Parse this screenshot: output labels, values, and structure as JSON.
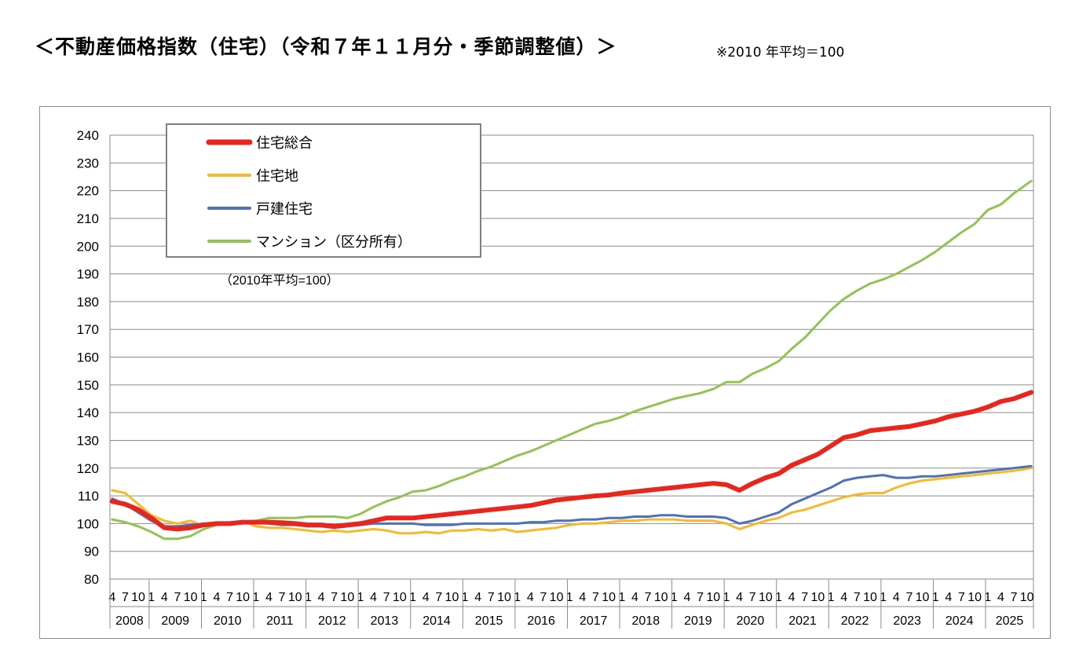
{
  "page": {
    "title": "＜不動産価格指数（住宅）（令和７年１１月分・季節調整値）＞",
    "note": "※2010 年平均＝100"
  },
  "chart_data": {
    "type": "line",
    "title": "",
    "ylim": [
      80,
      240
    ],
    "ytick_step": 10,
    "grid": "horizontal",
    "legend_position": "top-left",
    "base_note": "（2010年平均=100）",
    "month_tick_labels": [
      "1",
      "4",
      "7",
      "10"
    ],
    "years": [
      "2008",
      "2009",
      "2010",
      "2011",
      "2012",
      "2013",
      "2014",
      "2015",
      "2016",
      "2017",
      "2018",
      "2019",
      "2020",
      "2021",
      "2022",
      "2023",
      "2024",
      "2025"
    ],
    "x_start": "2008-04",
    "x_end": "2025-11",
    "series": [
      {
        "name": "住宅総合",
        "color": "#e8261e",
        "points": [
          [
            "2008-04",
            108
          ],
          [
            "2008-07",
            107
          ],
          [
            "2008-10",
            105
          ],
          [
            "2009-01",
            102
          ],
          [
            "2009-04",
            98.5
          ],
          [
            "2009-07",
            98
          ],
          [
            "2009-10",
            98.5
          ],
          [
            "2010-01",
            99.5
          ],
          [
            "2010-04",
            100
          ],
          [
            "2010-07",
            100
          ],
          [
            "2010-10",
            100.5
          ],
          [
            "2011-01",
            100.5
          ],
          [
            "2011-04",
            100.5
          ],
          [
            "2011-07",
            100.3
          ],
          [
            "2011-10",
            100
          ],
          [
            "2012-01",
            99.5
          ],
          [
            "2012-04",
            99.5
          ],
          [
            "2012-07",
            99
          ],
          [
            "2012-10",
            99.5
          ],
          [
            "2013-01",
            100
          ],
          [
            "2013-04",
            101
          ],
          [
            "2013-07",
            102
          ],
          [
            "2013-10",
            102
          ],
          [
            "2014-01",
            102
          ],
          [
            "2014-04",
            102.5
          ],
          [
            "2014-07",
            103
          ],
          [
            "2014-10",
            103.5
          ],
          [
            "2015-01",
            104
          ],
          [
            "2015-04",
            104.5
          ],
          [
            "2015-07",
            105
          ],
          [
            "2015-10",
            105.5
          ],
          [
            "2016-01",
            106
          ],
          [
            "2016-04",
            106.5
          ],
          [
            "2016-07",
            107.5
          ],
          [
            "2016-10",
            108.5
          ],
          [
            "2017-01",
            109
          ],
          [
            "2017-04",
            109.5
          ],
          [
            "2017-07",
            110
          ],
          [
            "2017-10",
            110.3
          ],
          [
            "2018-01",
            111
          ],
          [
            "2018-04",
            111.5
          ],
          [
            "2018-07",
            112
          ],
          [
            "2018-10",
            112.5
          ],
          [
            "2019-01",
            113
          ],
          [
            "2019-04",
            113.5
          ],
          [
            "2019-07",
            114
          ],
          [
            "2019-10",
            114.5
          ],
          [
            "2020-01",
            114
          ],
          [
            "2020-04",
            112
          ],
          [
            "2020-07",
            114.5
          ],
          [
            "2020-10",
            116.5
          ],
          [
            "2021-01",
            118
          ],
          [
            "2021-04",
            121
          ],
          [
            "2021-07",
            123
          ],
          [
            "2021-10",
            125
          ],
          [
            "2022-01",
            128
          ],
          [
            "2022-04",
            131
          ],
          [
            "2022-07",
            132
          ],
          [
            "2022-10",
            133.5
          ],
          [
            "2023-01",
            134
          ],
          [
            "2023-04",
            134.5
          ],
          [
            "2023-07",
            135
          ],
          [
            "2023-10",
            136
          ],
          [
            "2024-01",
            137
          ],
          [
            "2024-04",
            138.5
          ],
          [
            "2024-07",
            139.5
          ],
          [
            "2024-10",
            140.5
          ],
          [
            "2025-01",
            142
          ],
          [
            "2025-04",
            144
          ],
          [
            "2025-07",
            145
          ],
          [
            "2025-11",
            147.3
          ]
        ]
      },
      {
        "name": "住宅地",
        "color": "#f7b92b",
        "points": [
          [
            "2008-04",
            112
          ],
          [
            "2008-07",
            111
          ],
          [
            "2008-10",
            107
          ],
          [
            "2009-01",
            103
          ],
          [
            "2009-04",
            101
          ],
          [
            "2009-07",
            100
          ],
          [
            "2009-10",
            101
          ],
          [
            "2010-01",
            99
          ],
          [
            "2010-04",
            100
          ],
          [
            "2010-07",
            100
          ],
          [
            "2010-10",
            101
          ],
          [
            "2011-01",
            99
          ],
          [
            "2011-04",
            98.5
          ],
          [
            "2011-07",
            98.5
          ],
          [
            "2011-10",
            98
          ],
          [
            "2012-01",
            97.5
          ],
          [
            "2012-04",
            97
          ],
          [
            "2012-07",
            97.5
          ],
          [
            "2012-10",
            97
          ],
          [
            "2013-01",
            97.5
          ],
          [
            "2013-04",
            98
          ],
          [
            "2013-07",
            97.5
          ],
          [
            "2013-10",
            96.5
          ],
          [
            "2014-01",
            96.5
          ],
          [
            "2014-04",
            97
          ],
          [
            "2014-07",
            96.5
          ],
          [
            "2014-10",
            97.5
          ],
          [
            "2015-01",
            97.5
          ],
          [
            "2015-04",
            98
          ],
          [
            "2015-07",
            97.5
          ],
          [
            "2015-10",
            98
          ],
          [
            "2016-01",
            97
          ],
          [
            "2016-04",
            97.5
          ],
          [
            "2016-07",
            98
          ],
          [
            "2016-10",
            98.5
          ],
          [
            "2017-01",
            99.5
          ],
          [
            "2017-04",
            100
          ],
          [
            "2017-07",
            100
          ],
          [
            "2017-10",
            100.5
          ],
          [
            "2018-01",
            101
          ],
          [
            "2018-04",
            101
          ],
          [
            "2018-07",
            101.5
          ],
          [
            "2018-10",
            101.5
          ],
          [
            "2019-01",
            101.5
          ],
          [
            "2019-04",
            101
          ],
          [
            "2019-07",
            101
          ],
          [
            "2019-10",
            101
          ],
          [
            "2020-01",
            100
          ],
          [
            "2020-04",
            98
          ],
          [
            "2020-07",
            99.5
          ],
          [
            "2020-10",
            101
          ],
          [
            "2021-01",
            102
          ],
          [
            "2021-04",
            104
          ],
          [
            "2021-07",
            105
          ],
          [
            "2021-10",
            106.5
          ],
          [
            "2022-01",
            108
          ],
          [
            "2022-04",
            109.5
          ],
          [
            "2022-07",
            110.5
          ],
          [
            "2022-10",
            111
          ],
          [
            "2023-01",
            111
          ],
          [
            "2023-04",
            113
          ],
          [
            "2023-07",
            114.5
          ],
          [
            "2023-10",
            115.5
          ],
          [
            "2024-01",
            116
          ],
          [
            "2024-04",
            116.5
          ],
          [
            "2024-07",
            117
          ],
          [
            "2024-10",
            117.5
          ],
          [
            "2025-01",
            118
          ],
          [
            "2025-04",
            118.5
          ],
          [
            "2025-07",
            119
          ],
          [
            "2025-11",
            120
          ]
        ]
      },
      {
        "name": "戸建住宅",
        "color": "#4f71b6",
        "points": [
          [
            "2008-04",
            109
          ],
          [
            "2008-07",
            107
          ],
          [
            "2008-10",
            104
          ],
          [
            "2009-01",
            101
          ],
          [
            "2009-04",
            99
          ],
          [
            "2009-07",
            99
          ],
          [
            "2009-10",
            99.5
          ],
          [
            "2010-01",
            100
          ],
          [
            "2010-04",
            100
          ],
          [
            "2010-07",
            100
          ],
          [
            "2010-10",
            100.5
          ],
          [
            "2011-01",
            100.5
          ],
          [
            "2011-04",
            100
          ],
          [
            "2011-07",
            99.5
          ],
          [
            "2011-10",
            99.5
          ],
          [
            "2012-01",
            99
          ],
          [
            "2012-04",
            99
          ],
          [
            "2012-07",
            98.5
          ],
          [
            "2012-10",
            99
          ],
          [
            "2013-01",
            99.5
          ],
          [
            "2013-04",
            100
          ],
          [
            "2013-07",
            100
          ],
          [
            "2013-10",
            100
          ],
          [
            "2014-01",
            100
          ],
          [
            "2014-04",
            99.5
          ],
          [
            "2014-07",
            99.5
          ],
          [
            "2014-10",
            99.5
          ],
          [
            "2015-01",
            100
          ],
          [
            "2015-04",
            100
          ],
          [
            "2015-07",
            100
          ],
          [
            "2015-10",
            100
          ],
          [
            "2016-01",
            100
          ],
          [
            "2016-04",
            100.5
          ],
          [
            "2016-07",
            100.5
          ],
          [
            "2016-10",
            101
          ],
          [
            "2017-01",
            101
          ],
          [
            "2017-04",
            101.5
          ],
          [
            "2017-07",
            101.5
          ],
          [
            "2017-10",
            102
          ],
          [
            "2018-01",
            102
          ],
          [
            "2018-04",
            102.5
          ],
          [
            "2018-07",
            102.5
          ],
          [
            "2018-10",
            103
          ],
          [
            "2019-01",
            103
          ],
          [
            "2019-04",
            102.5
          ],
          [
            "2019-07",
            102.5
          ],
          [
            "2019-10",
            102.5
          ],
          [
            "2020-01",
            102
          ],
          [
            "2020-04",
            100
          ],
          [
            "2020-07",
            101
          ],
          [
            "2020-10",
            102.5
          ],
          [
            "2021-01",
            104
          ],
          [
            "2021-04",
            107
          ],
          [
            "2021-07",
            109
          ],
          [
            "2021-10",
            111
          ],
          [
            "2022-01",
            113
          ],
          [
            "2022-04",
            115.5
          ],
          [
            "2022-07",
            116.5
          ],
          [
            "2022-10",
            117
          ],
          [
            "2023-01",
            117.5
          ],
          [
            "2023-04",
            116.5
          ],
          [
            "2023-07",
            116.5
          ],
          [
            "2023-10",
            117
          ],
          [
            "2024-01",
            117
          ],
          [
            "2024-04",
            117.5
          ],
          [
            "2024-07",
            118
          ],
          [
            "2024-10",
            118.5
          ],
          [
            "2025-01",
            119
          ],
          [
            "2025-04",
            119.5
          ],
          [
            "2025-07",
            120
          ],
          [
            "2025-11",
            120.7
          ]
        ]
      },
      {
        "name": "マンション（区分所有）",
        "color": "#92c353",
        "points": [
          [
            "2008-04",
            101.5
          ],
          [
            "2008-07",
            100.5
          ],
          [
            "2008-10",
            99
          ],
          [
            "2009-01",
            97
          ],
          [
            "2009-04",
            94.5
          ],
          [
            "2009-07",
            94.5
          ],
          [
            "2009-10",
            95.5
          ],
          [
            "2010-01",
            98
          ],
          [
            "2010-04",
            99.5
          ],
          [
            "2010-07",
            100
          ],
          [
            "2010-10",
            100.5
          ],
          [
            "2011-01",
            101
          ],
          [
            "2011-04",
            102
          ],
          [
            "2011-07",
            102
          ],
          [
            "2011-10",
            102
          ],
          [
            "2012-01",
            102.5
          ],
          [
            "2012-04",
            102.5
          ],
          [
            "2012-07",
            102.5
          ],
          [
            "2012-10",
            102
          ],
          [
            "2013-01",
            103.5
          ],
          [
            "2013-04",
            106
          ],
          [
            "2013-07",
            108
          ],
          [
            "2013-10",
            109.5
          ],
          [
            "2014-01",
            111.5
          ],
          [
            "2014-04",
            112
          ],
          [
            "2014-07",
            113.5
          ],
          [
            "2014-10",
            115.5
          ],
          [
            "2015-01",
            117
          ],
          [
            "2015-04",
            119
          ],
          [
            "2015-07",
            120.5
          ],
          [
            "2015-10",
            122.5
          ],
          [
            "2016-01",
            124.5
          ],
          [
            "2016-04",
            126
          ],
          [
            "2016-07",
            128
          ],
          [
            "2016-10",
            130
          ],
          [
            "2017-01",
            132
          ],
          [
            "2017-04",
            134
          ],
          [
            "2017-07",
            136
          ],
          [
            "2017-10",
            137
          ],
          [
            "2018-01",
            138.5
          ],
          [
            "2018-04",
            140.5
          ],
          [
            "2018-07",
            142
          ],
          [
            "2018-10",
            143.5
          ],
          [
            "2019-01",
            145
          ],
          [
            "2019-04",
            146
          ],
          [
            "2019-07",
            147
          ],
          [
            "2019-10",
            148.5
          ],
          [
            "2020-01",
            151
          ],
          [
            "2020-04",
            151
          ],
          [
            "2020-07",
            154
          ],
          [
            "2020-10",
            156
          ],
          [
            "2021-01",
            158.5
          ],
          [
            "2021-04",
            163
          ],
          [
            "2021-07",
            167
          ],
          [
            "2021-10",
            172
          ],
          [
            "2022-01",
            177
          ],
          [
            "2022-04",
            181
          ],
          [
            "2022-07",
            184
          ],
          [
            "2022-10",
            186.5
          ],
          [
            "2023-01",
            188
          ],
          [
            "2023-04",
            190
          ],
          [
            "2023-07",
            192.5
          ],
          [
            "2023-10",
            195
          ],
          [
            "2024-01",
            198
          ],
          [
            "2024-04",
            201.5
          ],
          [
            "2024-07",
            205
          ],
          [
            "2024-10",
            208
          ],
          [
            "2025-01",
            213
          ],
          [
            "2025-04",
            215
          ],
          [
            "2025-07",
            219
          ],
          [
            "2025-11",
            223.5
          ]
        ]
      }
    ]
  }
}
